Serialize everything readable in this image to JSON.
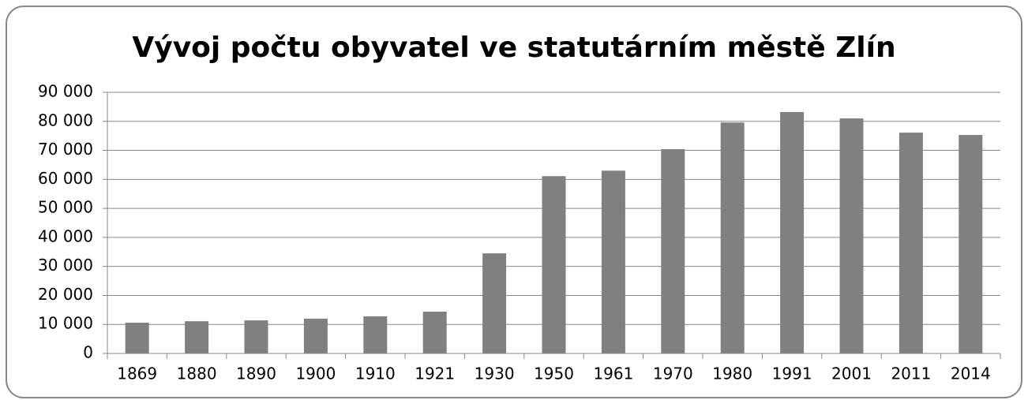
{
  "chart_data": {
    "type": "bar",
    "title": "Vývoj počtu obyvatel ve statutárním městě Zlín",
    "categories": [
      "1869",
      "1880",
      "1890",
      "1900",
      "1910",
      "1921",
      "1930",
      "1950",
      "1961",
      "1970",
      "1980",
      "1991",
      "2001",
      "2011",
      "2014"
    ],
    "values": [
      10600,
      11100,
      11400,
      12000,
      12800,
      14400,
      34500,
      61100,
      63000,
      70400,
      79600,
      83200,
      81000,
      76100,
      75300
    ],
    "color": "#808080",
    "ylim": [
      0,
      90000
    ],
    "yticks": [
      0,
      {
        "value": 10000,
        "label": "10 000"
      },
      {
        "value": 20000,
        "label": "20 000"
      },
      {
        "value": 30000,
        "label": "30 000"
      },
      {
        "value": 40000,
        "label": "40 000"
      },
      {
        "value": 50000,
        "label": "50 000"
      },
      {
        "value": 60000,
        "label": "60 000"
      },
      {
        "value": 70000,
        "label": "70 000"
      },
      {
        "value": 80000,
        "label": "80 000"
      },
      {
        "value": 90000,
        "label": "90 000"
      }
    ],
    "grid": true
  }
}
